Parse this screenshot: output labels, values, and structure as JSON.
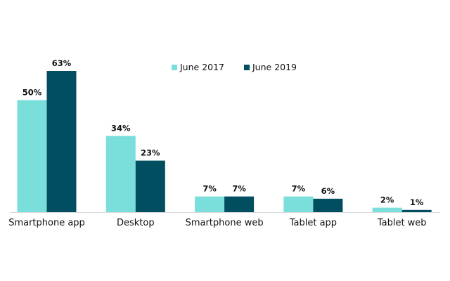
{
  "chart_data": {
    "type": "bar",
    "categories": [
      "Smartphone app",
      "Desktop",
      "Smartphone web",
      "Tablet app",
      "Tablet web"
    ],
    "series": [
      {
        "name": "June 2017",
        "values": [
          50,
          34,
          7,
          7,
          2
        ],
        "labels": [
          "50%",
          "34%",
          "7%",
          "7%",
          "2%"
        ],
        "color": "#7adfdb"
      },
      {
        "name": "June 2019",
        "values": [
          63,
          23,
          7,
          6,
          1
        ],
        "labels": [
          "63%",
          "23%",
          "7%",
          "6%",
          "1%"
        ],
        "color": "#004e5f"
      }
    ],
    "ylim": [
      0,
      63
    ],
    "grid": false,
    "legend_position": "top-center",
    "baseline_color": "#d9d9d9"
  }
}
